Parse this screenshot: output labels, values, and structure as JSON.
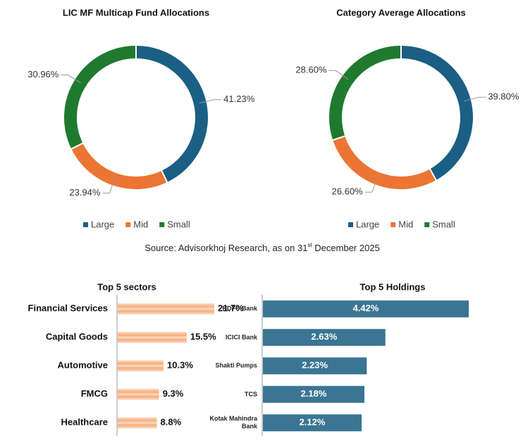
{
  "chart_data": [
    {
      "type": "donut",
      "title": "LIC MF Multicap Fund Allocations",
      "categories": [
        "Large",
        "Mid",
        "Small"
      ],
      "values": [
        41.23,
        23.94,
        30.96
      ],
      "value_labels": [
        "41.23%",
        "23.94%",
        "30.96%"
      ],
      "colors": [
        "#1b5f84",
        "#ec7533",
        "#1f7a2f"
      ],
      "legend": "bottom"
    },
    {
      "type": "donut",
      "title": "Category Average Allocations",
      "categories": [
        "Large",
        "Mid",
        "Small"
      ],
      "values": [
        39.8,
        26.6,
        28.6
      ],
      "value_labels": [
        "39.80%",
        "26.60%",
        "28.60%"
      ],
      "colors": [
        "#1b5f84",
        "#ec7533",
        "#1f7a2f"
      ],
      "legend": "bottom"
    },
    {
      "type": "hbar",
      "title": "Top 5 sectors",
      "categories": [
        "Financial Services",
        "Capital Goods",
        "Automotive",
        "FMCG",
        "Healthcare"
      ],
      "values": [
        21.7,
        15.5,
        10.3,
        9.3,
        8.8
      ],
      "value_labels": [
        "21.7%",
        "15.5%",
        "10.3%",
        "9.3%",
        "8.8%"
      ],
      "color": "#f5a36b",
      "label_position": "outside"
    },
    {
      "type": "hbar",
      "title": "Top 5 Holdings",
      "categories": [
        "HDFC Bank",
        "ICICI Bank",
        "Shakti Pumps",
        "TCS",
        "Kotak Mahindra Bank"
      ],
      "values": [
        4.42,
        2.63,
        2.23,
        2.18,
        2.12
      ],
      "value_labels": [
        "4.42%",
        "2.63%",
        "2.23%",
        "2.18%",
        "2.12%"
      ],
      "color": "#3a7592",
      "label_position": "inside"
    }
  ],
  "source": {
    "text": "Source: Advisorkhoj Research, as on 31",
    "superscript": "st",
    "suffix": " December 2025"
  }
}
